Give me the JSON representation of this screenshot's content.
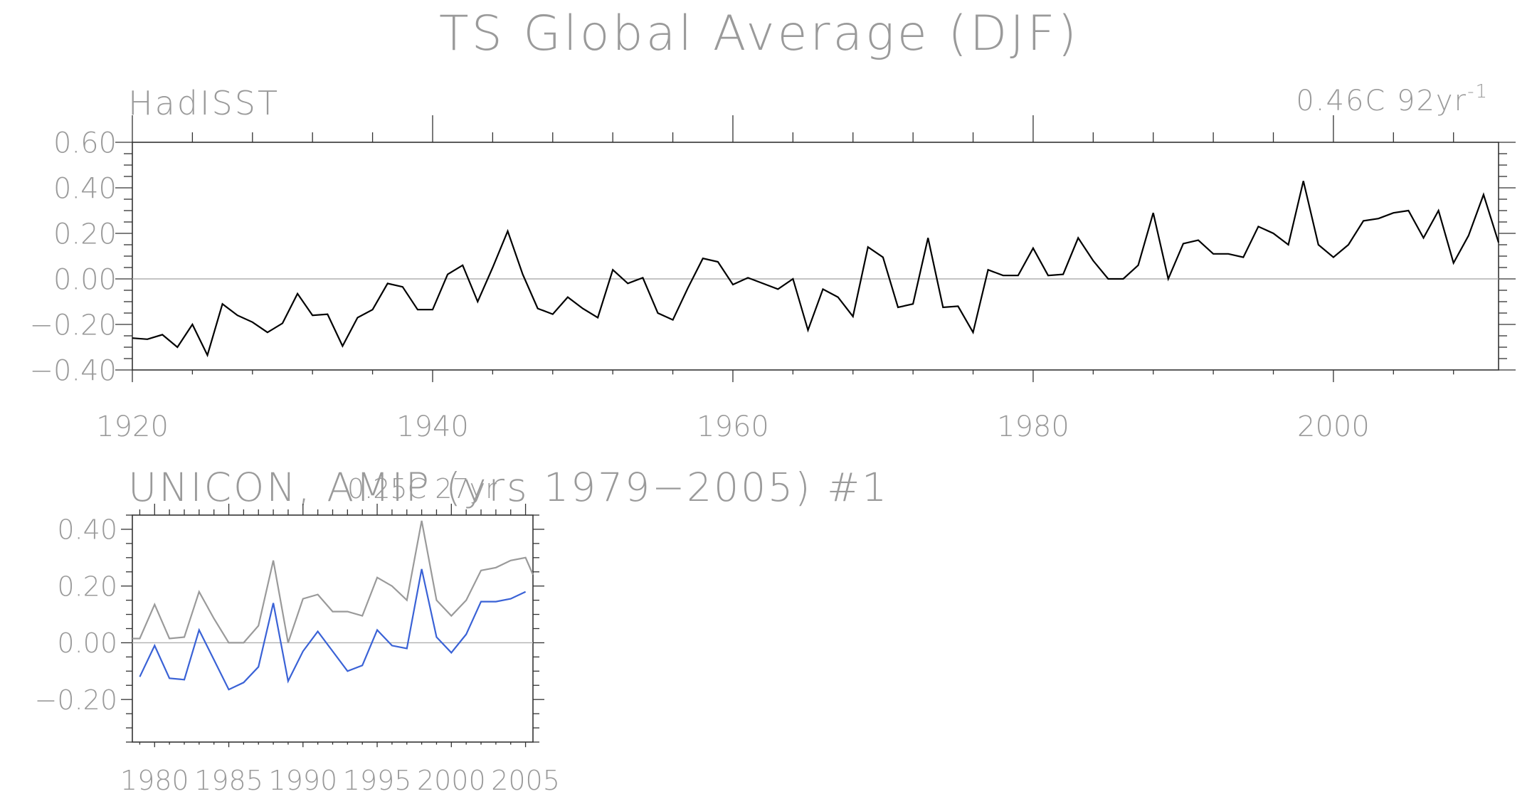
{
  "page": {
    "title": "TS Global Average (DJF)"
  },
  "chart_data": [
    {
      "type": "line",
      "title": "HadISST",
      "trend_label": "0.46C 92yr",
      "trend_exponent": "-1",
      "xlim": [
        1920,
        2011
      ],
      "ylim": [
        -0.4,
        0.6
      ],
      "yticks": [
        -0.4,
        -0.2,
        0.0,
        0.2,
        0.4,
        0.6
      ],
      "ytick_labels": [
        "−0.40",
        "−0.20",
        "0.00",
        "0.20",
        "0.40",
        "0.60"
      ],
      "xticks": [
        1920,
        1940,
        1960,
        1980,
        2000
      ],
      "xtick_labels": [
        "1920",
        "1940",
        "1960",
        "1980",
        "2000"
      ],
      "zero_line": true,
      "grid": false,
      "series": [
        {
          "color": "#000000",
          "x": [
            1920,
            1921,
            1922,
            1923,
            1924,
            1925,
            1926,
            1927,
            1928,
            1929,
            1930,
            1931,
            1932,
            1933,
            1934,
            1935,
            1936,
            1937,
            1938,
            1939,
            1940,
            1941,
            1942,
            1943,
            1944,
            1945,
            1946,
            1947,
            1948,
            1949,
            1950,
            1951,
            1952,
            1953,
            1954,
            1955,
            1956,
            1957,
            1958,
            1959,
            1960,
            1961,
            1962,
            1963,
            1964,
            1965,
            1966,
            1967,
            1968,
            1969,
            1970,
            1971,
            1972,
            1973,
            1974,
            1975,
            1976,
            1977,
            1978,
            1979,
            1980,
            1981,
            1982,
            1983,
            1984,
            1985,
            1986,
            1987,
            1988,
            1989,
            1990,
            1991,
            1992,
            1993,
            1994,
            1995,
            1996,
            1997,
            1998,
            1999,
            2000,
            2001,
            2002,
            2003,
            2004,
            2005,
            2006,
            2007,
            2008,
            2009,
            2010,
            2011
          ],
          "values": [
            -0.26,
            -0.265,
            -0.245,
            -0.3,
            -0.2,
            -0.335,
            -0.11,
            -0.16,
            -0.19,
            -0.235,
            -0.195,
            -0.065,
            -0.16,
            -0.155,
            -0.295,
            -0.17,
            -0.135,
            -0.02,
            -0.035,
            -0.135,
            -0.135,
            0.02,
            0.06,
            -0.1,
            0.05,
            0.21,
            0.02,
            -0.13,
            -0.155,
            -0.08,
            -0.13,
            -0.17,
            0.04,
            -0.02,
            0.005,
            -0.15,
            -0.18,
            -0.04,
            0.09,
            0.075,
            -0.025,
            0.005,
            -0.02,
            -0.045,
            0.0,
            -0.225,
            -0.045,
            -0.08,
            -0.165,
            0.14,
            0.095,
            -0.125,
            -0.11,
            0.18,
            -0.125,
            -0.12,
            -0.235,
            0.04,
            0.015,
            0.015,
            0.135,
            0.015,
            0.02,
            0.18,
            0.08,
            0.0,
            0.0,
            0.06,
            0.29,
            0.0,
            0.155,
            0.17,
            0.11,
            0.11,
            0.095,
            0.23,
            0.2,
            0.15,
            0.43,
            0.15,
            0.095,
            0.15,
            0.255,
            0.265,
            0.29,
            0.3,
            0.18,
            0.3,
            0.07,
            0.19,
            0.37,
            0.16
          ]
        }
      ]
    },
    {
      "type": "line",
      "title": "UNICON, AMIP (yrs 1979−2005)      #1",
      "trend_label": "0.25C 27yr",
      "xlim": [
        1978.5,
        2005.5
      ],
      "ylim": [
        -0.35,
        0.45
      ],
      "yticks": [
        -0.2,
        0.0,
        0.2,
        0.4
      ],
      "ytick_labels": [
        "−0.20",
        "0.00",
        "0.20",
        "0.40"
      ],
      "xticks": [
        1980,
        1985,
        1990,
        1995,
        2000,
        2005
      ],
      "xtick_labels": [
        "1980",
        "1985",
        "1990",
        "1995",
        "2000",
        "2005"
      ],
      "zero_line": true,
      "grid": false,
      "series": [
        {
          "color": "#9a9a9a",
          "x": [
            1978.5,
            1979,
            1980,
            1981,
            1982,
            1983,
            1984,
            1985,
            1986,
            1987,
            1988,
            1989,
            1990,
            1991,
            1992,
            1993,
            1994,
            1995,
            1996,
            1997,
            1998,
            1999,
            2000,
            2001,
            2002,
            2003,
            2004,
            2005,
            2005.5
          ],
          "values": [
            0.015,
            0.015,
            0.135,
            0.015,
            0.02,
            0.18,
            0.085,
            0.0,
            0.0,
            0.06,
            0.29,
            0.0,
            0.155,
            0.17,
            0.11,
            0.11,
            0.095,
            0.23,
            0.2,
            0.15,
            0.43,
            0.15,
            0.095,
            0.15,
            0.255,
            0.265,
            0.29,
            0.3,
            0.24
          ]
        },
        {
          "color": "#3a62d6",
          "x": [
            1979,
            1980,
            1981,
            1982,
            1983,
            1984,
            1985,
            1986,
            1987,
            1988,
            1989,
            1990,
            1991,
            1992,
            1993,
            1994,
            1995,
            1996,
            1997,
            1998,
            1999,
            2000,
            2001,
            2002,
            2003,
            2004,
            2005
          ],
          "values": [
            -0.12,
            -0.01,
            -0.125,
            -0.13,
            0.045,
            -0.06,
            -0.165,
            -0.14,
            -0.085,
            0.14,
            -0.135,
            -0.03,
            0.04,
            -0.03,
            -0.1,
            -0.08,
            0.045,
            -0.01,
            -0.02,
            0.26,
            0.02,
            -0.035,
            0.03,
            0.145,
            0.145,
            0.155,
            0.18
          ]
        }
      ]
    }
  ]
}
